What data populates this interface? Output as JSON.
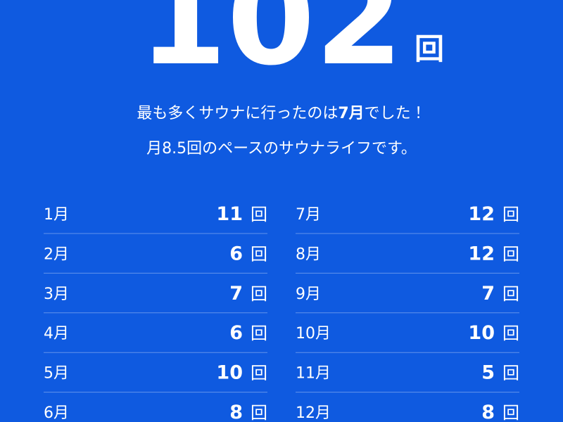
{
  "total": {
    "value": "102",
    "unit": "回"
  },
  "summary": {
    "line1": {
      "before": "最も多くサウナに行ったのは",
      "highlight": "7月",
      "after": "でした！"
    },
    "line2": "月8.5回のペースのサウナライフです。"
  },
  "count_unit": "回",
  "months": [
    {
      "month": "1月",
      "count": 11
    },
    {
      "month": "2月",
      "count": 6
    },
    {
      "month": "3月",
      "count": 7
    },
    {
      "month": "4月",
      "count": 6
    },
    {
      "month": "5月",
      "count": 10
    },
    {
      "month": "6月",
      "count": 8
    },
    {
      "month": "7月",
      "count": 12
    },
    {
      "month": "8月",
      "count": 12
    },
    {
      "month": "9月",
      "count": 7
    },
    {
      "month": "10月",
      "count": 10
    },
    {
      "month": "11月",
      "count": 5
    },
    {
      "month": "12月",
      "count": 8
    }
  ]
}
